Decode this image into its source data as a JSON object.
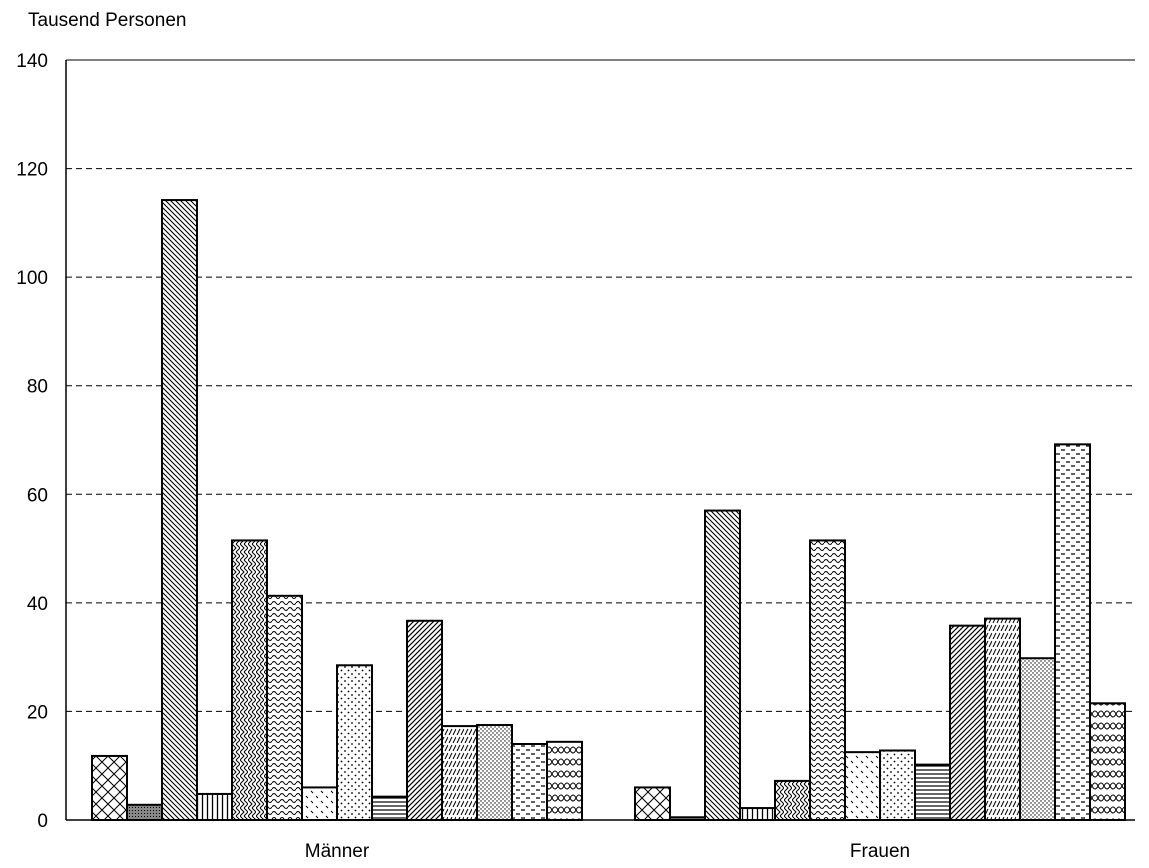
{
  "chart_data": {
    "type": "bar",
    "ylabel": "Tausend Personen",
    "ylim": [
      0,
      140
    ],
    "yticks": [
      "0",
      "20",
      "40",
      "60",
      "80",
      "100",
      "120",
      "140"
    ],
    "grid": true,
    "categories": [
      "Männer",
      "Frauen"
    ],
    "series": [
      {
        "values": [
          11.8,
          6.0
        ],
        "pattern": "crosshatch"
      },
      {
        "values": [
          2.8,
          0.5
        ],
        "pattern": "dense-dots"
      },
      {
        "values": [
          114.2,
          57.0
        ],
        "pattern": "diag-back"
      },
      {
        "values": [
          4.8,
          2.2
        ],
        "pattern": "vertical"
      },
      {
        "values": [
          51.5,
          7.2
        ],
        "pattern": "zigzag"
      },
      {
        "values": [
          41.3,
          51.5
        ],
        "pattern": "waves"
      },
      {
        "values": [
          6.0,
          12.5
        ],
        "pattern": "sparse-dash"
      },
      {
        "values": [
          28.5,
          12.8
        ],
        "pattern": "dots"
      },
      {
        "values": [
          4.3,
          10.2
        ],
        "pattern": "horizontal"
      },
      {
        "values": [
          36.7,
          35.8
        ],
        "pattern": "diag-fwd"
      },
      {
        "values": [
          17.3,
          37.1
        ],
        "pattern": "diag-dash"
      },
      {
        "values": [
          17.5,
          29.8
        ],
        "pattern": "fine-dots"
      },
      {
        "values": [
          14.0,
          69.2
        ],
        "pattern": "h-dash"
      },
      {
        "values": [
          14.4,
          21.5
        ],
        "pattern": "links"
      }
    ]
  }
}
